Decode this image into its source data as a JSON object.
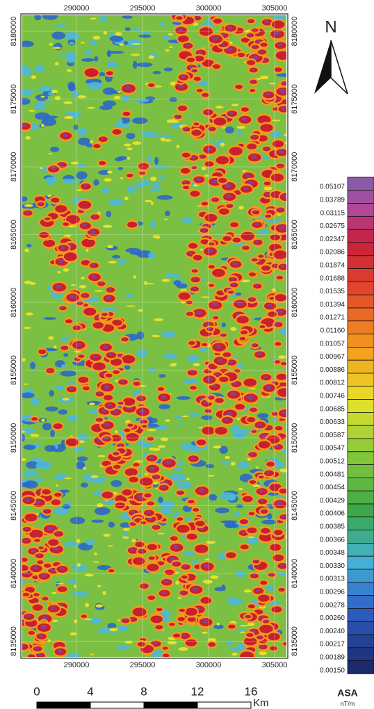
{
  "map": {
    "x_labels": [
      "290000",
      "295000",
      "300000",
      "305000"
    ],
    "y_labels": [
      "8180000",
      "8175000",
      "8170000",
      "8165000",
      "8160000",
      "8155000",
      "8150000",
      "8145000",
      "8140000",
      "8135000"
    ],
    "north": "N",
    "legend": {
      "labels": [
        "0.05107",
        "0.03789",
        "0.03115",
        "0.02675",
        "0.02347",
        "0.02086",
        "0.01874",
        "0.01688",
        "0.01535",
        "0.01394",
        "0.01271",
        "0.01160",
        "0.01057",
        "0.00967",
        "0.00886",
        "0.00812",
        "0.00746",
        "0.00685",
        "0.00633",
        "0.00587",
        "0.00547",
        "0.00512",
        "0.00481",
        "0.00454",
        "0.00429",
        "0.00406",
        "0.00385",
        "0.00366",
        "0.00348",
        "0.00330",
        "0.00313",
        "0.00296",
        "0.00278",
        "0.00260",
        "0.00240",
        "0.00217",
        "0.00189",
        "0.00150"
      ]
    },
    "scale_bar": {
      "labels": [
        "0",
        "4",
        "8",
        "12",
        "16"
      ],
      "unit": "Km"
    },
    "legend_title": "ASA",
    "legend_unit": "nT/m"
  }
}
